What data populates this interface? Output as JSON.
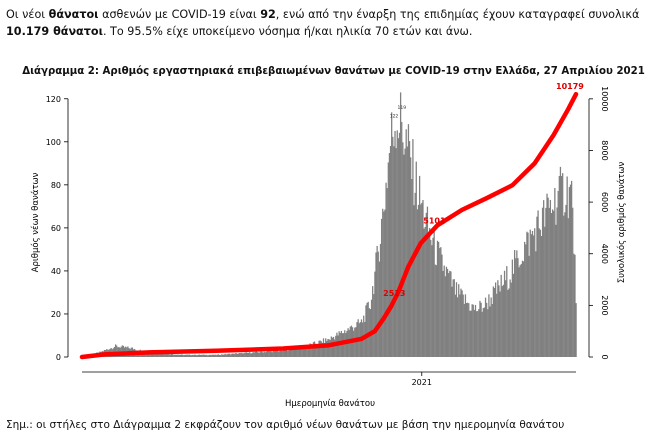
{
  "intro": {
    "s1": "Οι νέοι ",
    "s2": "θάνατοι",
    "s3": " ασθενών με COVID-19 είναι ",
    "s4": "92",
    "s5": ", ενώ από την έναρξη της επιδημίας έχουν καταγραφεί συνολικά ",
    "s6": "10.179 θάνατοι",
    "s7": ".  Το 95.5% είχε υποκείμενο νόσημα ή/και ηλικία 70 ετών και άνω."
  },
  "footnote": "Σημ.: οι στήλες στο Διάγραμμα 2 εκφράζουν τον αριθμό νέων θανάτων με βάση την ημερομηνία θανάτου",
  "chart_data": {
    "type": "bar+line",
    "title": "Διάγραμμα 2: Αριθμός εργαστηριακά επιβεβαιωμένων θανάτων με COVID-19 στην Ελλάδα, 27 Απριλίου 2021",
    "xlabel": "Ημερομηνία θανάτου",
    "ylabel_left": "Αριθμός νέων θανάτων",
    "ylabel_right": "Συνολικός αριθμός θανάτων",
    "x_tick_label": "2021",
    "x_tick_at_day": 304,
    "ylim_left": [
      0,
      125
    ],
    "yticks_left": [
      0,
      20,
      40,
      60,
      80,
      100,
      120
    ],
    "ylim_right": [
      0,
      10420
    ],
    "yticks_right": [
      0,
      2000,
      4000,
      6000,
      8000,
      10000
    ],
    "bar_color": "#808080",
    "line_color": "#ff0000",
    "line_annotations": [
      {
        "text": "2513",
        "day": 283
      },
      {
        "text": "5101",
        "day": 318
      },
      {
        "text": "10179",
        "day": 442
      }
    ],
    "bar_peak_labels": [
      {
        "text": "122",
        "day": 278
      },
      {
        "text": "119",
        "day": 285
      }
    ],
    "daily_segments": [
      {
        "day": 0,
        "value": 0
      },
      {
        "day": 15,
        "value": 2
      },
      {
        "day": 30,
        "value": 5
      },
      {
        "day": 45,
        "value": 4
      },
      {
        "day": 60,
        "value": 2
      },
      {
        "day": 90,
        "value": 1
      },
      {
        "day": 120,
        "value": 1
      },
      {
        "day": 150,
        "value": 2
      },
      {
        "day": 180,
        "value": 3
      },
      {
        "day": 200,
        "value": 5
      },
      {
        "day": 220,
        "value": 8
      },
      {
        "day": 235,
        "value": 12
      },
      {
        "day": 250,
        "value": 16
      },
      {
        "day": 258,
        "value": 25
      },
      {
        "day": 264,
        "value": 45
      },
      {
        "day": 270,
        "value": 70
      },
      {
        "day": 276,
        "value": 100
      },
      {
        "day": 281,
        "value": 112
      },
      {
        "day": 286,
        "value": 108
      },
      {
        "day": 292,
        "value": 95
      },
      {
        "day": 300,
        "value": 78
      },
      {
        "day": 308,
        "value": 62
      },
      {
        "day": 316,
        "value": 50
      },
      {
        "day": 325,
        "value": 40
      },
      {
        "day": 335,
        "value": 30
      },
      {
        "day": 345,
        "value": 25
      },
      {
        "day": 352,
        "value": 22
      },
      {
        "day": 360,
        "value": 24
      },
      {
        "day": 370,
        "value": 30
      },
      {
        "day": 382,
        "value": 38
      },
      {
        "day": 395,
        "value": 50
      },
      {
        "day": 410,
        "value": 62
      },
      {
        "day": 422,
        "value": 72
      },
      {
        "day": 432,
        "value": 78
      },
      {
        "day": 438,
        "value": 76
      },
      {
        "day": 442,
        "value": 30
      }
    ],
    "cumulative": [
      {
        "day": 0,
        "value": 0
      },
      {
        "day": 20,
        "value": 100
      },
      {
        "day": 60,
        "value": 180
      },
      {
        "day": 120,
        "value": 240
      },
      {
        "day": 180,
        "value": 330
      },
      {
        "day": 220,
        "value": 450
      },
      {
        "day": 250,
        "value": 700
      },
      {
        "day": 262,
        "value": 1000
      },
      {
        "day": 270,
        "value": 1500
      },
      {
        "day": 277,
        "value": 2000
      },
      {
        "day": 283,
        "value": 2513
      },
      {
        "day": 292,
        "value": 3500
      },
      {
        "day": 303,
        "value": 4400
      },
      {
        "day": 318,
        "value": 5101
      },
      {
        "day": 340,
        "value": 5700
      },
      {
        "day": 362,
        "value": 6150
      },
      {
        "day": 385,
        "value": 6650
      },
      {
        "day": 405,
        "value": 7500
      },
      {
        "day": 422,
        "value": 8600
      },
      {
        "day": 435,
        "value": 9600
      },
      {
        "day": 442,
        "value": 10179
      }
    ]
  }
}
